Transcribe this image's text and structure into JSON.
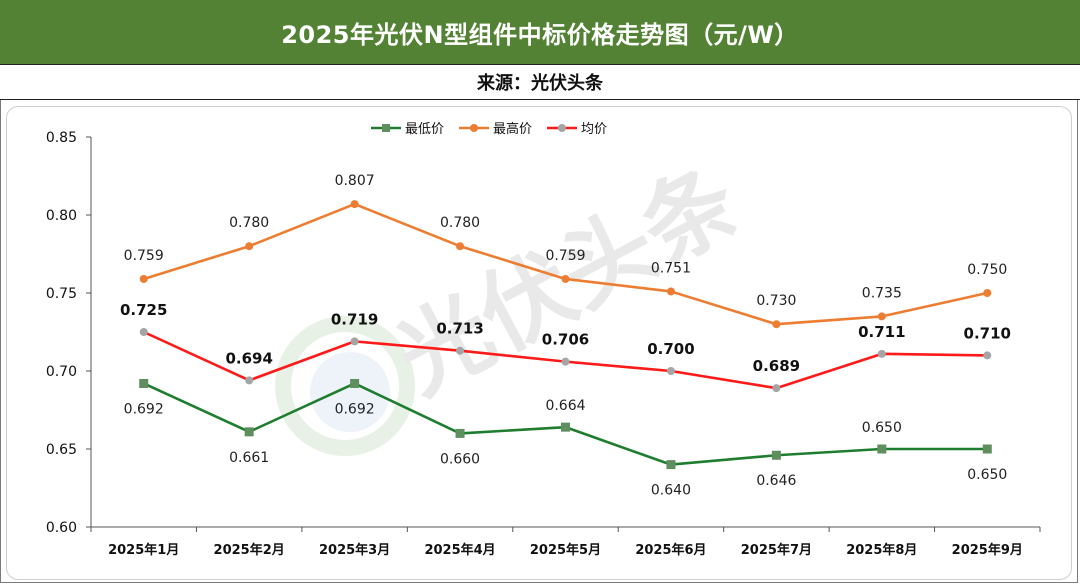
{
  "header": {
    "title": "2025年光伏N型组件中标价格走势图（元/W）",
    "source": "来源：光伏头条"
  },
  "watermark": "光伏头条",
  "colors": {
    "header_bg": "#548235",
    "min": "#1e7d2e",
    "max": "#ed7d31",
    "avg": "#ff1a1a",
    "avg_marker": "#a5a5a5"
  },
  "chart_data": {
    "type": "line",
    "title": "",
    "xlabel": "",
    "ylabel": "",
    "ylim": [
      0.6,
      0.85
    ],
    "yticks": [
      "0.60",
      "0.65",
      "0.70",
      "0.75",
      "0.80",
      "0.85"
    ],
    "grid": false,
    "legend_position": "top-center",
    "categories": [
      "2025年1月",
      "2025年2月",
      "2025年3月",
      "2025年4月",
      "2025年5月",
      "2025年6月",
      "2025年7月",
      "2025年8月",
      "2025年9月"
    ],
    "series": [
      {
        "name": "最低价",
        "marker": "square",
        "color": "#1e7d2e",
        "values": [
          0.692,
          0.661,
          0.692,
          0.66,
          0.664,
          0.64,
          0.646,
          0.65,
          0.65
        ],
        "labels": [
          "0.692",
          "0.661",
          "0.692",
          "0.660",
          "0.664",
          "0.640",
          "0.646",
          "0.650",
          "0.650"
        ]
      },
      {
        "name": "最高价",
        "marker": "circle",
        "color": "#ed7d31",
        "values": [
          0.759,
          0.78,
          0.807,
          0.78,
          0.759,
          0.751,
          0.73,
          0.735,
          0.75
        ],
        "labels": [
          "0.759",
          "0.780",
          "0.807",
          "0.780",
          "0.759",
          "0.751",
          "0.730",
          "0.735",
          "0.750"
        ]
      },
      {
        "name": "均价",
        "marker": "circle",
        "color": "#ff1a1a",
        "values": [
          0.725,
          0.694,
          0.719,
          0.713,
          0.706,
          0.7,
          0.689,
          0.711,
          0.71
        ],
        "labels": [
          "0.725",
          "0.694",
          "0.719",
          "0.713",
          "0.706",
          "0.700",
          "0.689",
          "0.711",
          "0.710"
        ]
      }
    ]
  }
}
